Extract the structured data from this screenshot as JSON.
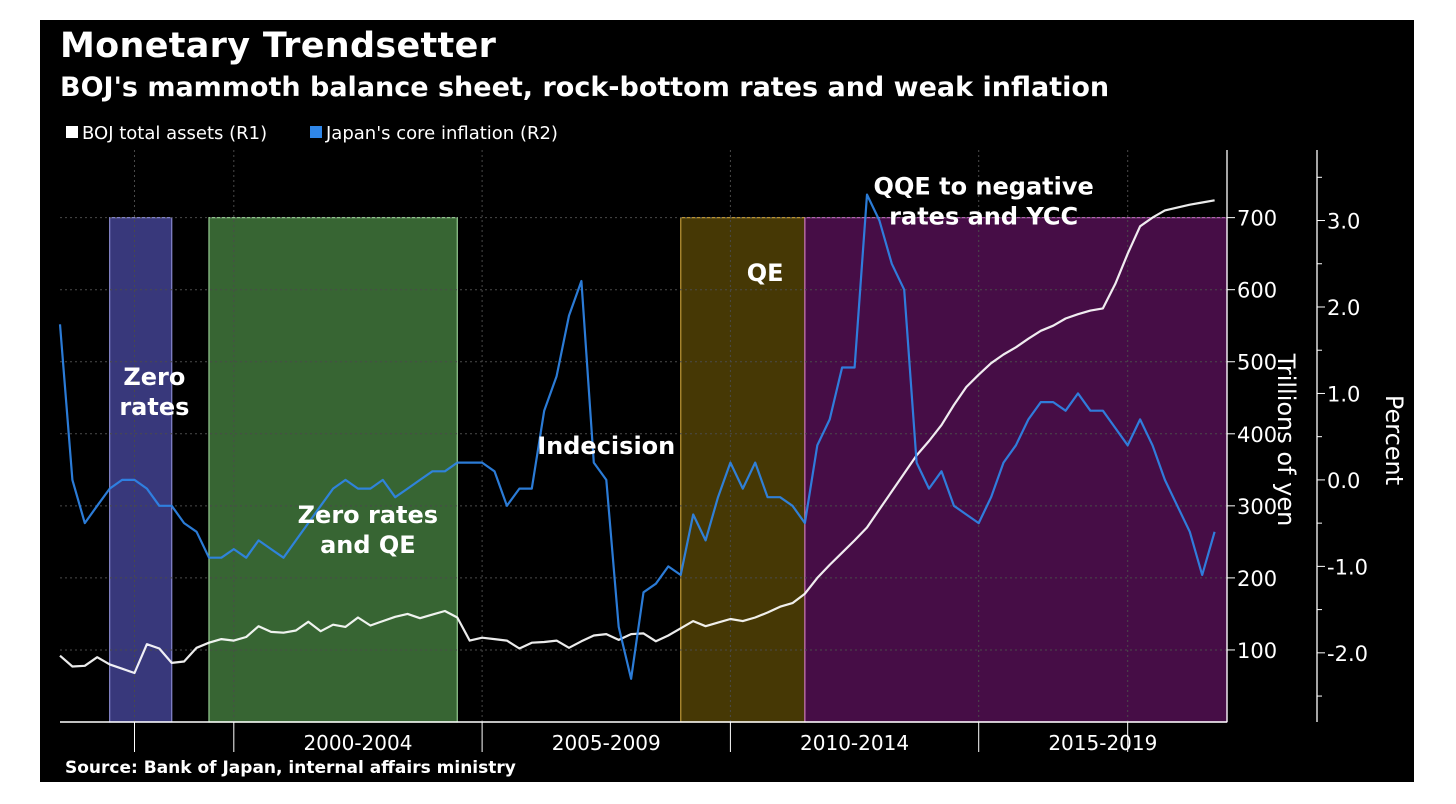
{
  "title": "Monetary Trendsetter",
  "subtitle": "BOJ's mammoth balance sheet, rock-bottom rates and weak inflation",
  "source": "Source: Bank of Japan, internal affairs ministry",
  "colors": {
    "background": "#000000",
    "assets_line": "#ffffff",
    "inflation_line": "#2f86e8",
    "grid": "#4a4a4a",
    "text": "#ffffff"
  },
  "chart_data": {
    "type": "line",
    "legend": {
      "position": "top-left",
      "entries": [
        "BOJ total assets (R1)",
        "Japan's core inflation  (R2)"
      ]
    },
    "x_range": [
      1996.5,
      2020.0
    ],
    "x_tick_labels": [
      {
        "label": "2000-2004",
        "center": 2002.5
      },
      {
        "label": "2005-2009",
        "center": 2007.5
      },
      {
        "label": "2010-2014",
        "center": 2012.5
      },
      {
        "label": "2015-2019",
        "center": 2017.5
      }
    ],
    "x_minor_ticks": [
      1998,
      2000,
      2005,
      2010,
      2015,
      2018
    ],
    "y_axes": [
      {
        "id": "R1",
        "label": "Trillions of yen",
        "range": [
          0,
          780
        ],
        "ticks": [
          100,
          200,
          300,
          400,
          500,
          600,
          700
        ],
        "tick_labels": [
          "100",
          "200",
          "300",
          "400",
          "500",
          "600",
          "700"
        ]
      },
      {
        "id": "R2",
        "label": "Percent",
        "range": [
          -2.8,
          3.7
        ],
        "ticks": [
          -2.0,
          -1.0,
          0.0,
          1.0,
          2.0,
          3.0
        ],
        "tick_labels": [
          "-2.0",
          "-1.0",
          "0.0",
          "1.0",
          "2.0",
          "3.0"
        ]
      }
    ],
    "shaded_periods": [
      {
        "label": "Zero\nrates",
        "label_lines": [
          "Zero",
          "rates"
        ],
        "start": 1997.5,
        "end": 1998.75,
        "top_value": 700,
        "color": "#3b3b82",
        "border": "#8f8fd8",
        "label_at": [
          1998.4,
          1.1
        ]
      },
      {
        "label": "Zero rates\nand QE",
        "label_lines": [
          "Zero rates",
          "and QE"
        ],
        "start": 1999.5,
        "end": 2004.5,
        "top_value": 700,
        "color": "#3a6b36",
        "border": "#9fd89a",
        "label_at": [
          2002.7,
          -0.5
        ]
      },
      {
        "label": "QE",
        "label_lines": [
          "QE"
        ],
        "start": 2009.0,
        "end": 2011.5,
        "top_value": 700,
        "color": "#4a3c06",
        "border": "#cca23a",
        "label_at": [
          2010.7,
          2.3
        ]
      },
      {
        "label": "QQE to negative\nrates and YCC",
        "label_lines": [
          "QQE to negative",
          "rates and YCC"
        ],
        "start": 2011.5,
        "end": 2020.0,
        "top_value": 700,
        "color": "#4a0e4a",
        "border": "#c46cc4",
        "label_at": [
          2015.1,
          3.3
        ]
      }
    ],
    "annotations": [
      {
        "text": "Indecision",
        "at": [
          2007.5,
          0.3
        ]
      }
    ],
    "series": [
      {
        "name": "BOJ total assets (R1)",
        "axis": "R1",
        "x": [
          1996.5,
          1996.75,
          1997.0,
          1997.25,
          1997.5,
          1997.75,
          1998.0,
          1998.25,
          1998.5,
          1998.75,
          1999.0,
          1999.25,
          1999.5,
          1999.75,
          2000.0,
          2000.25,
          2000.5,
          2000.75,
          2001.0,
          2001.25,
          2001.5,
          2001.75,
          2002.0,
          2002.25,
          2002.5,
          2002.75,
          2003.0,
          2003.25,
          2003.5,
          2003.75,
          2004.0,
          2004.25,
          2004.5,
          2004.75,
          2005.0,
          2005.25,
          2005.5,
          2005.75,
          2006.0,
          2006.25,
          2006.5,
          2006.75,
          2007.0,
          2007.25,
          2007.5,
          2007.75,
          2008.0,
          2008.25,
          2008.5,
          2008.75,
          2009.0,
          2009.25,
          2009.5,
          2009.75,
          2010.0,
          2010.25,
          2010.5,
          2010.75,
          2011.0,
          2011.25,
          2011.5,
          2011.75,
          2012.0,
          2012.25,
          2012.5,
          2012.75,
          2013.0,
          2013.25,
          2013.5,
          2013.75,
          2014.0,
          2014.25,
          2014.5,
          2014.75,
          2015.0,
          2015.25,
          2015.5,
          2015.75,
          2016.0,
          2016.25,
          2016.5,
          2016.75,
          2017.0,
          2017.25,
          2017.5,
          2017.75,
          2018.0,
          2018.25,
          2018.5,
          2018.75,
          2019.0,
          2019.25,
          2019.5,
          2019.75
        ],
        "y": [
          92,
          77,
          78,
          90,
          80,
          74,
          68,
          108,
          102,
          82,
          84,
          103,
          110,
          115,
          113,
          118,
          133,
          125,
          124,
          127,
          139,
          126,
          135,
          132,
          145,
          134,
          140,
          146,
          150,
          144,
          149,
          154,
          145,
          113,
          117,
          115,
          113,
          102,
          110,
          111,
          113,
          103,
          112,
          120,
          122,
          114,
          122,
          123,
          112,
          120,
          130,
          140,
          133,
          138,
          143,
          140,
          145,
          152,
          160,
          165,
          178,
          200,
          218,
          235,
          252,
          270,
          295,
          320,
          345,
          370,
          390,
          412,
          440,
          465,
          482,
          498,
          510,
          520,
          532,
          543,
          550,
          560,
          566,
          571,
          574,
          608,
          650,
          688,
          700,
          710,
          714,
          718,
          721,
          724
        ]
      },
      {
        "name": "Japan's core inflation  (R2)",
        "axis": "R2",
        "x": [
          1996.5,
          1996.75,
          1997.0,
          1997.25,
          1997.5,
          1997.75,
          1998.0,
          1998.25,
          1998.5,
          1998.75,
          1999.0,
          1999.25,
          1999.5,
          1999.75,
          2000.0,
          2000.25,
          2000.5,
          2000.75,
          2001.0,
          2001.25,
          2001.5,
          2001.75,
          2002.0,
          2002.25,
          2002.5,
          2002.75,
          2003.0,
          2003.25,
          2003.5,
          2003.75,
          2004.0,
          2004.25,
          2004.5,
          2004.75,
          2005.0,
          2005.25,
          2005.5,
          2005.75,
          2006.0,
          2006.25,
          2006.5,
          2006.75,
          2007.0,
          2007.25,
          2007.5,
          2007.75,
          2008.0,
          2008.25,
          2008.5,
          2008.75,
          2009.0,
          2009.25,
          2009.5,
          2009.75,
          2010.0,
          2010.25,
          2010.5,
          2010.75,
          2011.0,
          2011.25,
          2011.5,
          2011.75,
          2012.0,
          2012.25,
          2012.5,
          2012.75,
          2013.0,
          2013.25,
          2013.5,
          2013.75,
          2014.0,
          2014.25,
          2014.5,
          2014.75,
          2015.0,
          2015.25,
          2015.5,
          2015.75,
          2016.0,
          2016.25,
          2016.5,
          2016.75,
          2017.0,
          2017.25,
          2017.5,
          2017.75,
          2018.0,
          2018.25,
          2018.5,
          2018.75,
          2019.0,
          2019.25,
          2019.5,
          2019.75
        ],
        "y": [
          1.8,
          0.0,
          -0.5,
          -0.3,
          -0.1,
          0.0,
          0.0,
          -0.1,
          -0.3,
          -0.3,
          -0.5,
          -0.6,
          -0.9,
          -0.9,
          -0.8,
          -0.9,
          -0.7,
          -0.8,
          -0.9,
          -0.7,
          -0.5,
          -0.3,
          -0.1,
          0.0,
          -0.1,
          -0.1,
          0.0,
          -0.2,
          -0.1,
          0.0,
          0.1,
          0.1,
          0.2,
          0.2,
          0.2,
          0.1,
          -0.3,
          -0.1,
          -0.1,
          0.8,
          1.2,
          1.9,
          2.3,
          0.2,
          0.0,
          -1.7,
          -2.3,
          -1.3,
          -1.2,
          -1.0,
          -1.1,
          -0.4,
          -0.7,
          -0.2,
          0.2,
          -0.1,
          0.2,
          -0.2,
          -0.2,
          -0.3,
          -0.5,
          0.4,
          0.7,
          1.3,
          1.3,
          3.3,
          3.0,
          2.5,
          2.2,
          0.2,
          -0.1,
          0.1,
          -0.3,
          -0.4,
          -0.5,
          -0.2,
          0.2,
          0.4,
          0.7,
          0.9,
          0.9,
          0.8,
          1.0,
          0.8,
          0.8,
          0.6,
          0.4,
          0.7,
          0.4,
          0.0,
          -0.3,
          -0.6,
          -1.1,
          -0.6
        ]
      }
    ]
  }
}
